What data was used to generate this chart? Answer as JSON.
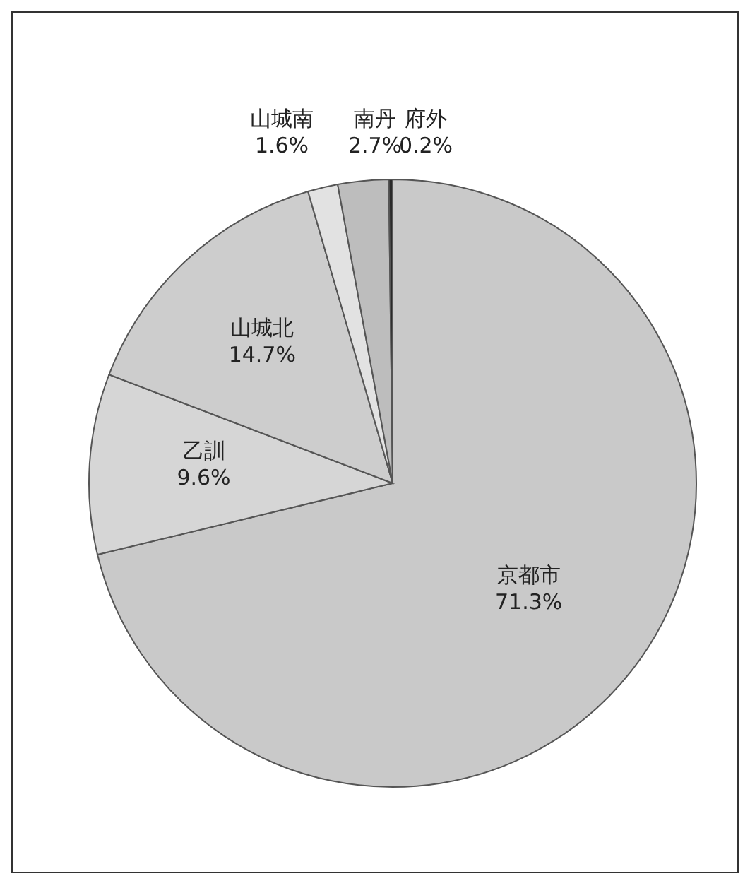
{
  "chart_data": {
    "type": "pie",
    "categories": [
      "京都市",
      "乙訓",
      "山城北",
      "山城南",
      "南丹",
      "府外"
    ],
    "values": [
      71.3,
      9.6,
      14.7,
      1.6,
      2.7,
      0.2
    ],
    "value_labels": [
      "71.3%",
      "9.6%",
      "14.7%",
      "1.6%",
      "2.7%",
      "0.2%"
    ],
    "colors": [
      "#c9c9c9",
      "#d6d6d6",
      "#cdcdcd",
      "#e2e2e2",
      "#bdbdbd",
      "#2a2a2a"
    ]
  }
}
